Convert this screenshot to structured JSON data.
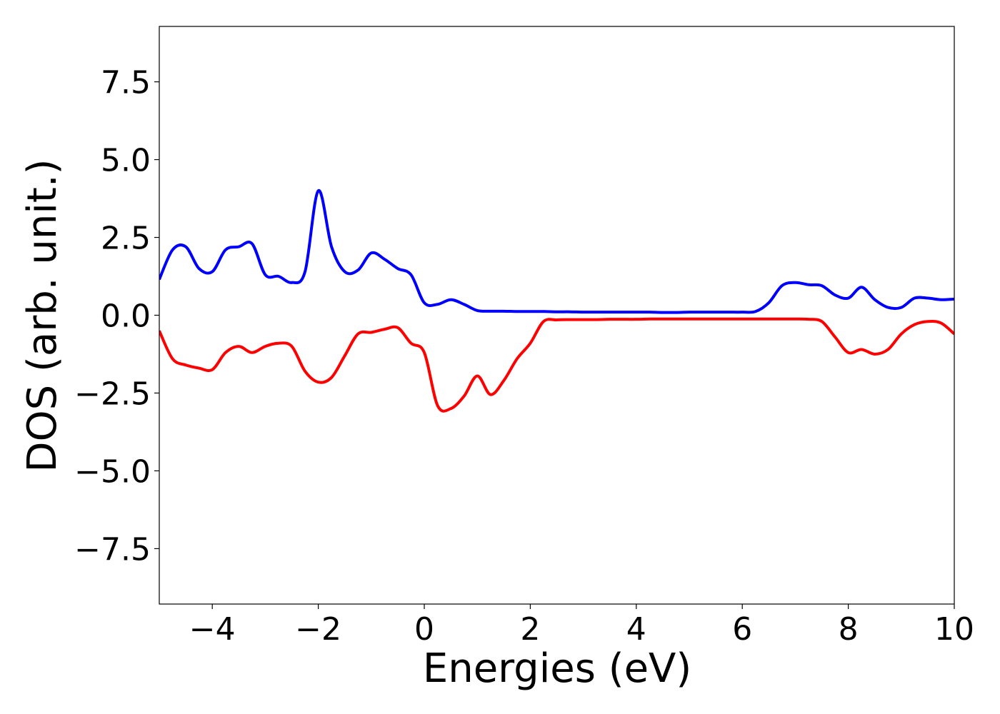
{
  "chart_data": {
    "type": "line",
    "xlabel": "Energies (eV)",
    "ylabel": "DOS (arb. unit.)",
    "x": [
      -5,
      -4.75,
      -4.5,
      -4.25,
      -4,
      -3.75,
      -3.5,
      -3.25,
      -3,
      -2.75,
      -2.5,
      -2.25,
      -2,
      -1.75,
      -1.5,
      -1.25,
      -1,
      -0.75,
      -0.5,
      -0.25,
      0,
      0.25,
      0.5,
      0.75,
      1,
      1.25,
      1.5,
      1.75,
      2,
      2.25,
      2.5,
      2.75,
      3,
      3.25,
      3.5,
      3.75,
      4,
      4.25,
      4.5,
      4.75,
      5,
      5.25,
      5.5,
      5.75,
      6,
      6.25,
      6.5,
      6.75,
      7,
      7.25,
      7.5,
      7.75,
      8,
      8.25,
      8.5,
      8.75,
      9,
      9.25,
      9.5,
      9.75,
      10
    ],
    "series": [
      {
        "color": "#0000ff",
        "values": [
          1.15,
          2.1,
          2.2,
          1.5,
          1.4,
          2.1,
          2.2,
          2.3,
          1.3,
          1.25,
          1.05,
          1.4,
          4.0,
          2.2,
          1.4,
          1.45,
          2.0,
          1.8,
          1.5,
          1.3,
          0.4,
          0.35,
          0.5,
          0.35,
          0.15,
          0.13,
          0.13,
          0.12,
          0.12,
          0.12,
          0.11,
          0.11,
          0.1,
          0.1,
          0.1,
          0.1,
          0.1,
          0.1,
          0.09,
          0.09,
          0.1,
          0.1,
          0.1,
          0.1,
          0.1,
          0.12,
          0.4,
          0.95,
          1.05,
          0.98,
          0.95,
          0.65,
          0.55,
          0.9,
          0.5,
          0.25,
          0.25,
          0.55,
          0.55,
          0.5,
          0.52
        ]
      },
      {
        "color": "#ff0000",
        "values": [
          -0.5,
          -1.4,
          -1.6,
          -1.7,
          -1.75,
          -1.2,
          -1.0,
          -1.2,
          -1.0,
          -0.9,
          -1.0,
          -1.8,
          -2.15,
          -2.0,
          -1.3,
          -0.6,
          -0.55,
          -0.45,
          -0.4,
          -0.9,
          -1.2,
          -2.9,
          -3.0,
          -2.6,
          -1.95,
          -2.55,
          -2.1,
          -1.4,
          -0.9,
          -0.2,
          -0.15,
          -0.14,
          -0.14,
          -0.14,
          -0.13,
          -0.13,
          -0.13,
          -0.12,
          -0.12,
          -0.12,
          -0.12,
          -0.12,
          -0.12,
          -0.12,
          -0.12,
          -0.12,
          -0.12,
          -0.12,
          -0.12,
          -0.13,
          -0.2,
          -0.7,
          -1.2,
          -1.1,
          -1.25,
          -1.1,
          -0.6,
          -0.3,
          -0.2,
          -0.25,
          -0.6
        ]
      }
    ],
    "xlim": [
      -5,
      10
    ],
    "xticks": [
      {
        "value": -4,
        "label": "−4"
      },
      {
        "value": -2,
        "label": "−2"
      },
      0,
      2,
      4,
      6,
      8,
      10
    ],
    "ylim": [
      -9.28,
      9.28
    ],
    "yticks": [
      {
        "value": -7.5,
        "label": "−7.5"
      },
      {
        "value": -5,
        "label": "−5.0"
      },
      {
        "value": -2.5,
        "label": "−2.5"
      },
      {
        "value": 0,
        "label": "0.0"
      },
      2.5,
      {
        "value": 5,
        "label": "5.0"
      },
      7.5
    ],
    "grid": false
  }
}
